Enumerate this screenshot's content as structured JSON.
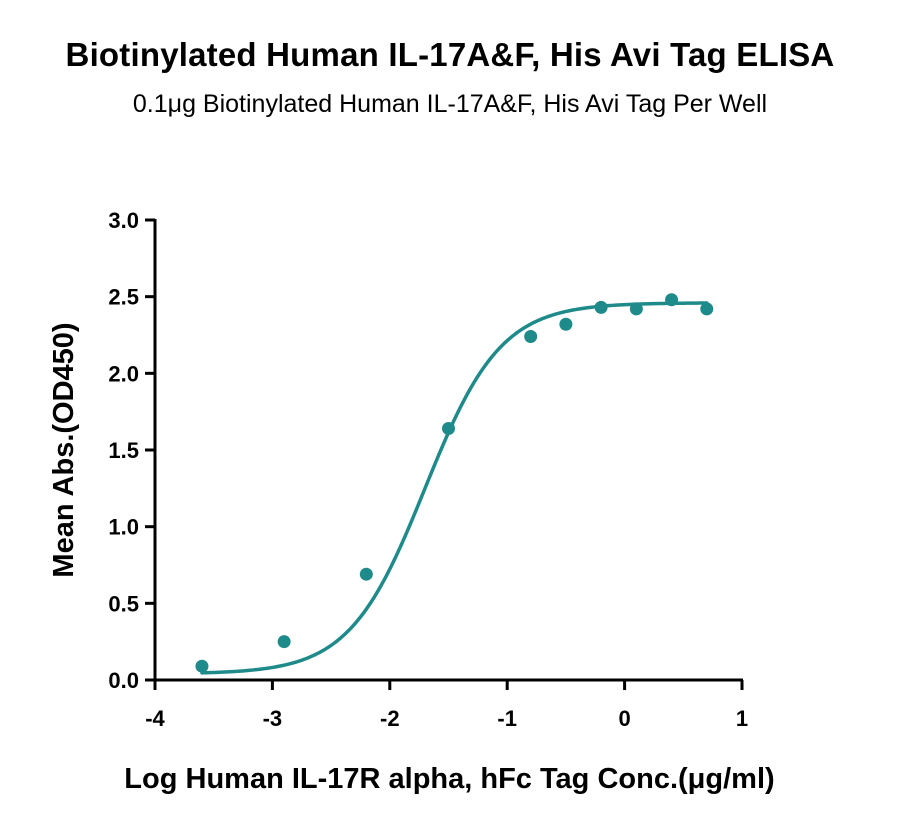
{
  "chart_data": {
    "type": "scatter",
    "title": "Biotinylated Human IL-17A&F, His Avi Tag ELISA",
    "subtitle": "0.1μg Biotinylated Human IL-17A&F, His Avi Tag Per Well",
    "xlabel": "Log Human IL-17R alpha, hFc Tag Conc.(μg/ml)",
    "ylabel": "Mean Abs.(OD450)",
    "xlim": [
      -4,
      1
    ],
    "ylim": [
      0,
      3
    ],
    "x_ticks": [
      -4,
      -3,
      -2,
      -1,
      0,
      1
    ],
    "y_ticks": [
      0.0,
      0.5,
      1.0,
      1.5,
      2.0,
      2.5,
      3.0
    ],
    "x_tick_labels": [
      "-4",
      "-3",
      "-2",
      "-1",
      "0",
      "1"
    ],
    "y_tick_labels": [
      "0.0",
      "0.5",
      "1.0",
      "1.5",
      "2.0",
      "2.5",
      "3.0"
    ],
    "grid": false,
    "series": [
      {
        "color": "#1f8a8a",
        "x": [
          -3.6,
          -2.9,
          -2.2,
          -1.5,
          -0.8,
          -0.5,
          -0.2,
          0.1,
          0.4,
          0.7
        ],
        "y": [
          0.09,
          0.25,
          0.69,
          1.64,
          2.24,
          2.32,
          2.43,
          2.42,
          2.48,
          2.42
        ],
        "fit": {
          "model": "4PL",
          "bottom": 0.04,
          "top": 2.46,
          "log_ec50": -1.7,
          "hill_slope": 1.35
        }
      }
    ]
  }
}
